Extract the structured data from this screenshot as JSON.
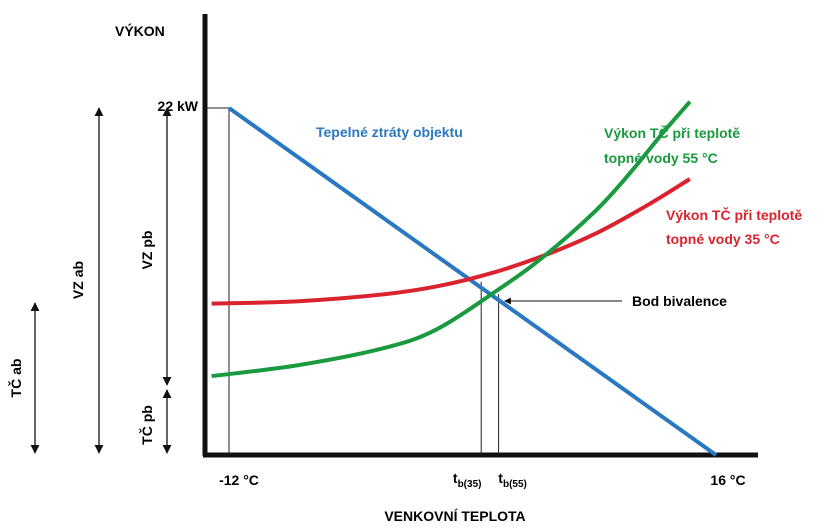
{
  "chart_data": {
    "type": "line",
    "title": "",
    "ylabel": "VÝKON",
    "xlabel": "VENKOVNÍ TEPLOTA",
    "xlim": [
      -13,
      20
    ],
    "ylim": [
      0,
      23.5
    ],
    "x_ticks": [
      {
        "x": -12,
        "label": "-12 °C"
      },
      {
        "x": 16,
        "label": "16 °C"
      }
    ],
    "bivalence_ticks": [
      {
        "x": 2.5,
        "base": "t",
        "sub": "b(35)"
      },
      {
        "x": 3.5,
        "base": "t",
        "sub": "b(55)"
      }
    ],
    "y_tick": {
      "y": 22,
      "label": "22 kW"
    },
    "series": [
      {
        "name": "Tepelné ztráty objektu",
        "color": "#2b78c2",
        "points": [
          [
            -12,
            22
          ],
          [
            16,
            0
          ]
        ]
      },
      {
        "name": "Výkon TČ při teplotě topné vody 35 °C",
        "color": "#d9242f",
        "points": [
          [
            -13,
            9.6
          ],
          [
            -8,
            9.75
          ],
          [
            -3,
            10.2
          ],
          [
            0,
            10.7
          ],
          [
            3,
            11.5
          ],
          [
            6,
            12.6
          ],
          [
            9,
            14.0
          ],
          [
            12,
            15.8
          ],
          [
            14.5,
            17.5
          ]
        ]
      },
      {
        "name": "Výkon TČ při teplotě topné vody 55 °C",
        "color": "#1a9a3e",
        "points": [
          [
            -13,
            5.0
          ],
          [
            -8,
            5.7
          ],
          [
            -3,
            6.8
          ],
          [
            0,
            8.0
          ],
          [
            3.5,
            10.5
          ],
          [
            6,
            12.5
          ],
          [
            9,
            15.4
          ],
          [
            11,
            17.8
          ],
          [
            13,
            20.5
          ],
          [
            14.5,
            22.4
          ]
        ]
      }
    ],
    "series_labels": {
      "loss": "Tepelné ztráty objektu",
      "tc35": [
        "Výkon TČ při teplotě",
        "topné vody 35 °C"
      ],
      "tc55": [
        "Výkon TČ při teplotě",
        "topné vody 55 °C"
      ]
    },
    "annotation": "Bod bivalence",
    "spans": {
      "vz_ab": "VZ ab",
      "tc_ab": "TČ ab",
      "vz_pb": "VZ pb",
      "tc_pb": "TČ pb"
    }
  }
}
